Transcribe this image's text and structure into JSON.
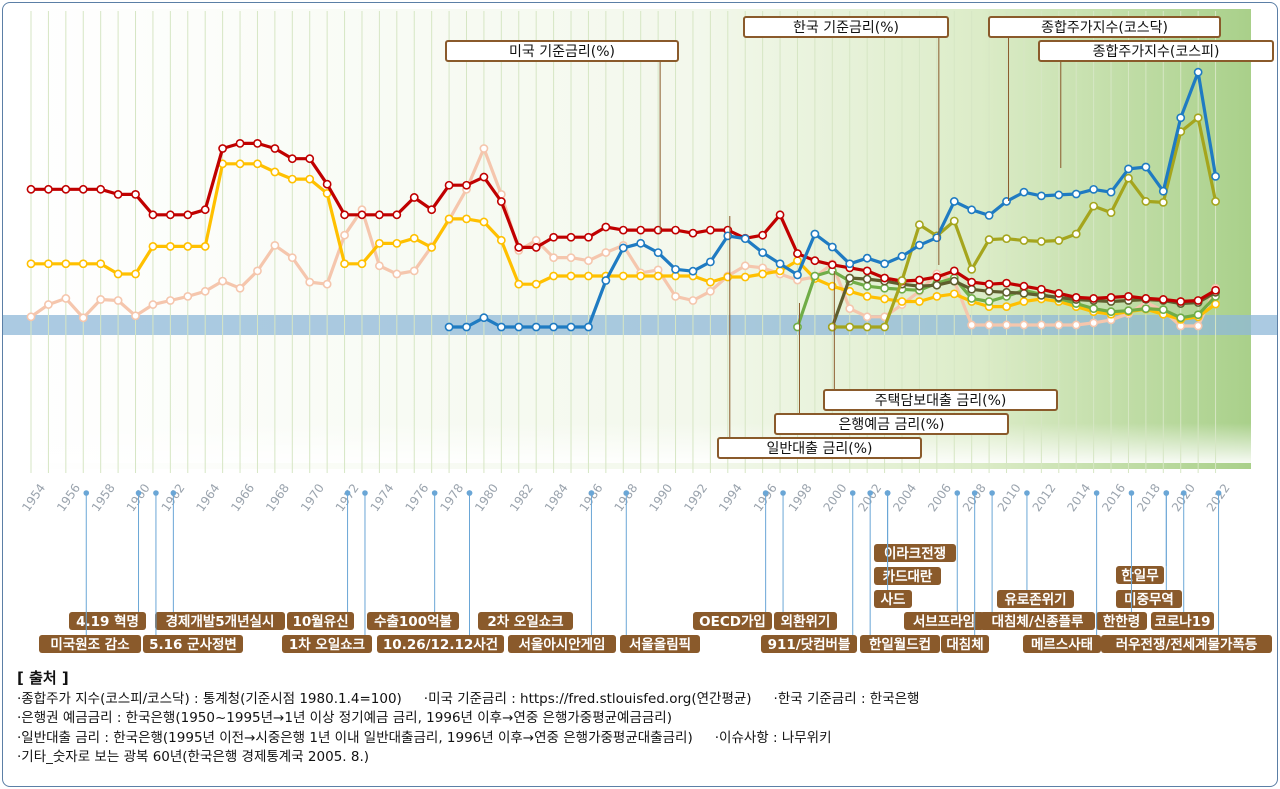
{
  "chart_data": {
    "type": "line",
    "x": [
      1954,
      1955,
      1956,
      1957,
      1958,
      1959,
      1960,
      1961,
      1962,
      1963,
      1964,
      1965,
      1966,
      1967,
      1968,
      1969,
      1970,
      1971,
      1972,
      1973,
      1974,
      1975,
      1976,
      1977,
      1978,
      1979,
      1980,
      1981,
      1982,
      1983,
      1984,
      1985,
      1986,
      1987,
      1988,
      1989,
      1990,
      1991,
      1992,
      1993,
      1994,
      1995,
      1996,
      1997,
      1998,
      1999,
      2000,
      2001,
      2002,
      2003,
      2004,
      2005,
      2006,
      2007,
      2008,
      2009,
      2010,
      2011,
      2012,
      2013,
      2014,
      2015,
      2016,
      2017,
      2018,
      2019,
      2020,
      2021,
      2022
    ],
    "x_ticks": [
      "1954",
      "1956",
      "1958",
      "1960",
      "1962",
      "1964",
      "1966",
      "1968",
      "1970",
      "1972",
      "1974",
      "1976",
      "1978",
      "1980",
      "1982",
      "1984",
      "1986",
      "1988",
      "1990",
      "1992",
      "1994",
      "1996",
      "1998",
      "2000",
      "2002",
      "2004",
      "2006",
      "2008",
      "2010",
      "2012",
      "2014",
      "2016",
      "2018",
      "2020",
      "2022"
    ],
    "series": [
      {
        "name": "미국 기준금리(%)",
        "color": "#f5c6ad",
        "callout_year": 1990,
        "values": [
          1.0,
          2.2,
          2.8,
          0.9,
          2.7,
          2.6,
          1.1,
          2.2,
          2.6,
          3.0,
          3.5,
          4.5,
          3.8,
          5.5,
          8.0,
          6.8,
          4.4,
          4.2,
          9.0,
          11.5,
          6.0,
          5.2,
          5.5,
          7.9,
          10.5,
          13.5,
          17.5,
          13.0,
          7.5,
          8.5,
          6.8,
          6.8,
          6.5,
          7.3,
          8.0,
          5.3,
          5.6,
          3.0,
          2.6,
          3.5,
          5.0,
          6.0,
          5.8,
          5.2,
          4.6,
          4.9,
          6.2,
          1.8,
          1.0,
          1.0,
          2.2,
          3.5,
          5.2,
          4.5,
          0.2,
          0.2,
          0.2,
          0.2,
          0.2,
          0.2,
          0.2,
          0.4,
          0.7,
          1.3,
          2.4,
          1.6,
          0.1,
          0.1,
          3.8
        ]
      },
      {
        "name": "한국 기준금리(%)",
        "color": "#ffc000",
        "callout_year": 2006,
        "values": [
          6.2,
          6.2,
          6.2,
          6.2,
          6.2,
          5.2,
          5.2,
          7.9,
          7.9,
          7.9,
          7.9,
          16.0,
          16.0,
          16.0,
          15.2,
          14.5,
          14.5,
          13.1,
          6.2,
          6.2,
          8.2,
          8.2,
          8.7,
          7.8,
          10.6,
          10.6,
          10.3,
          8.5,
          4.2,
          4.2,
          5.0,
          5.0,
          5.0,
          5.0,
          5.0,
          5.0,
          5.0,
          5.0,
          5.0,
          4.4,
          4.9,
          4.9,
          5.2,
          5.5,
          6.5,
          4.75,
          4.0,
          3.5,
          3.0,
          2.75,
          2.5,
          2.5,
          3.0,
          3.25,
          2.5,
          2.0,
          2.0,
          2.5,
          2.75,
          2.5,
          2.0,
          1.5,
          1.25,
          1.5,
          1.75,
          1.25,
          0.75,
          1.0,
          2.25
        ]
      },
      {
        "name": "은행예금 금리(%)",
        "color": "#70ad47",
        "callout_year": 1998,
        "values": [
          null,
          null,
          null,
          null,
          null,
          null,
          null,
          null,
          null,
          null,
          null,
          null,
          null,
          null,
          null,
          null,
          null,
          null,
          null,
          null,
          null,
          null,
          null,
          null,
          null,
          null,
          null,
          null,
          null,
          null,
          null,
          null,
          null,
          null,
          null,
          null,
          null,
          null,
          null,
          null,
          null,
          null,
          null,
          null,
          0.0,
          5.0,
          5.5,
          4.5,
          4.0,
          3.8,
          3.7,
          3.6,
          4.3,
          4.8,
          2.8,
          2.5,
          3.0,
          3.6,
          3.2,
          2.8,
          2.3,
          1.8,
          1.5,
          1.6,
          1.8,
          1.7,
          0.9,
          1.2,
          3.0
        ]
      },
      {
        "name": "주택담보대출 금리(%)",
        "color": "#5e5e2e",
        "callout_year": 2000,
        "values": [
          null,
          null,
          null,
          null,
          null,
          null,
          null,
          null,
          null,
          null,
          null,
          null,
          null,
          null,
          null,
          null,
          null,
          null,
          null,
          null,
          null,
          null,
          null,
          null,
          null,
          null,
          null,
          null,
          null,
          null,
          null,
          null,
          null,
          null,
          null,
          null,
          null,
          null,
          null,
          null,
          null,
          null,
          null,
          null,
          null,
          null,
          0.0,
          4.8,
          4.7,
          4.5,
          4.2,
          4.0,
          4.1,
          4.5,
          3.7,
          3.5,
          3.4,
          3.3,
          3.1,
          2.9,
          2.7,
          2.6,
          2.5,
          2.6,
          2.7,
          2.6,
          2.3,
          2.4,
          3.4
        ]
      },
      {
        "name": "일반대출 금리(%)",
        "color": "#c00000",
        "callout_year": 1994,
        "values": [
          13.5,
          13.5,
          13.5,
          13.5,
          13.5,
          13.0,
          13.0,
          11.0,
          11.0,
          11.0,
          11.5,
          17.5,
          18.0,
          18.0,
          17.5,
          16.5,
          16.5,
          14.0,
          11.0,
          11.0,
          11.0,
          11.0,
          12.7,
          11.5,
          13.9,
          13.9,
          14.7,
          12.3,
          7.8,
          7.8,
          8.8,
          8.8,
          8.8,
          9.8,
          9.5,
          9.5,
          9.5,
          9.5,
          9.2,
          9.5,
          9.5,
          8.7,
          9.0,
          11.0,
          7.2,
          6.5,
          6.1,
          5.8,
          5.5,
          4.8,
          4.5,
          4.6,
          4.9,
          5.5,
          4.4,
          4.2,
          4.3,
          4.0,
          3.7,
          3.3,
          2.9,
          2.8,
          2.9,
          3.0,
          2.8,
          2.7,
          2.5,
          2.6,
          3.6
        ]
      },
      {
        "name": "종합주가지수(코스닥)",
        "color": "#a5a51d",
        "callout_year": 2010,
        "values": [
          null,
          null,
          null,
          null,
          null,
          null,
          null,
          null,
          null,
          null,
          null,
          null,
          null,
          null,
          null,
          null,
          null,
          null,
          null,
          null,
          null,
          null,
          null,
          null,
          null,
          null,
          null,
          null,
          null,
          null,
          null,
          null,
          null,
          null,
          null,
          null,
          null,
          null,
          null,
          null,
          null,
          null,
          null,
          null,
          null,
          null,
          0.0,
          0.0,
          0.0,
          0.0,
          500,
          1100,
          980,
          1140,
          620,
          940,
          950,
          930,
          920,
          930,
          1000,
          1300,
          1230,
          1600,
          1350,
          1340,
          2100,
          2250,
          1350
        ]
      },
      {
        "name": "종합주가지수(코스피)",
        "color": "#1f7bc2",
        "callout_year": 2013,
        "values": [
          null,
          null,
          null,
          null,
          null,
          null,
          null,
          null,
          null,
          null,
          null,
          null,
          null,
          null,
          null,
          null,
          null,
          null,
          null,
          null,
          null,
          null,
          null,
          null,
          0.0,
          0.0,
          100,
          0.0,
          0.0,
          0.0,
          0.0,
          0.0,
          0.0,
          500,
          850,
          900,
          800,
          620,
          600,
          700,
          980,
          950,
          800,
          680,
          560,
          1000,
          860,
          680,
          740,
          680,
          760,
          880,
          960,
          1350,
          1260,
          1200,
          1350,
          1450,
          1410,
          1420,
          1430,
          1480,
          1450,
          1700,
          1720,
          1460,
          2250,
          2740,
          1620
        ]
      }
    ],
    "events_top": [
      {
        "label": "4.19 혁명",
        "year": 1960
      },
      {
        "label": "경제개발5개년실시",
        "year": 1962
      },
      {
        "label": "10월유신",
        "year": 1972
      },
      {
        "label": "수출100억불",
        "year": 1977
      },
      {
        "label": "2차 오일쇼크",
        "year": 1979
      },
      {
        "label": "OECD가입",
        "year": 1996
      },
      {
        "label": "외환위기",
        "year": 1997
      },
      {
        "label": "이라크전쟁",
        "year": 2003
      },
      {
        "label": "카드대란",
        "year": 2003
      },
      {
        "label": "사드",
        "year": 2003
      },
      {
        "label": "서브프라임",
        "year": 2007
      },
      {
        "label": "유로존위기",
        "year": 2011
      },
      {
        "label": "대침체/신종플루",
        "year": 2009
      },
      {
        "label": "한일무",
        "year": 2019
      },
      {
        "label": "미중무역",
        "year": 2019
      },
      {
        "label": "한한령",
        "year": 2017
      },
      {
        "label": "코로나19",
        "year": 2020
      }
    ],
    "events_bottom": [
      {
        "label": "미국원조 감소",
        "year": 1957
      },
      {
        "label": "5.16 군사정변",
        "year": 1961
      },
      {
        "label": "1차 오일쇼크",
        "year": 1973
      },
      {
        "label": "10.26/12.12사건",
        "year": 1979
      },
      {
        "label": "서울아시안게임",
        "year": 1986
      },
      {
        "label": "서울올림픽",
        "year": 1988
      },
      {
        "label": "911/닷컴버블",
        "year": 2001
      },
      {
        "label": "한일월드컵",
        "year": 2002
      },
      {
        "label": "대침체",
        "year": 2008
      },
      {
        "label": "메르스사태",
        "year": 2015
      },
      {
        "label": "러우전쟁/전세계물가폭등",
        "year": 2022
      }
    ]
  },
  "sources": {
    "title": "[ 출처 ]",
    "line1a": "·종합주가 지수(코스피/코스닥) : 통계청(기준시점 1980.1.4=100)",
    "line1b": "·미국 기준금리 : https://fred.stlouisfed.org(연간평균)",
    "line1c": "·한국 기준금리 : 한국은행",
    "line2": "·은행권 예금금리 : 한국은행(1950~1995년→1년 이상 정기예금 금리, 1996년 이후→연중 은행가중평균예금금리)",
    "line3a": "·일반대출 금리 :  한국은행(1995년 이전→시중은행 1년 이내 일반대출금리, 1996년 이후→연중 은행가중평균대출금리)",
    "line3b": "·이슈사항 : 나무위키",
    "line4": "·기타_숫자로 보는 광복 60년(한국은행 경제통계국 2005. 8.)"
  }
}
